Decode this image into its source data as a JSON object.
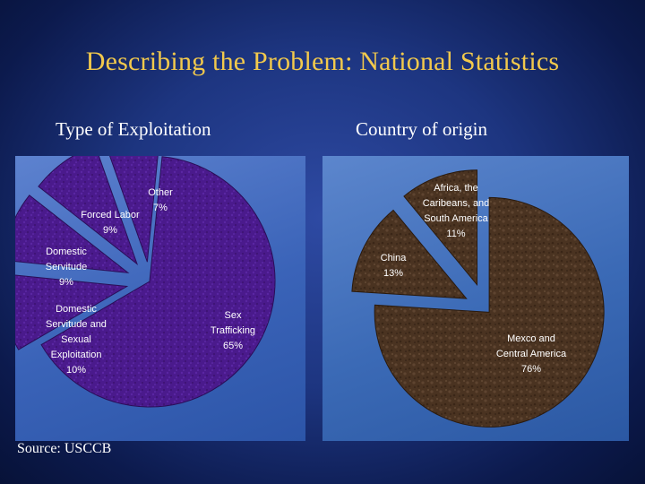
{
  "slide": {
    "title": "Describing the Problem: National Statistics",
    "source": "Source: USCCB"
  },
  "colors": {
    "title": "#f2c94c",
    "left_pie_fill": "#4a1a8c",
    "right_pie_fill": "#4a3321",
    "panel_blue": "#3a63b8"
  },
  "chart_data": [
    {
      "type": "pie",
      "title": "Type of Exploitation",
      "exploded": true,
      "slices": [
        {
          "label_lines": [
            "Sex",
            "Trafficking",
            "65%"
          ],
          "value": 65
        },
        {
          "label_lines": [
            "Domestic",
            "Servitude and",
            "Sexual",
            "Exploitation",
            "10%"
          ],
          "value": 10
        },
        {
          "label_lines": [
            "Domestic",
            "Servitude",
            "9%"
          ],
          "value": 9
        },
        {
          "label_lines": [
            "Forced Labor",
            "9%"
          ],
          "value": 9
        },
        {
          "label_lines": [
            "Other",
            "7%"
          ],
          "value": 7
        }
      ]
    },
    {
      "type": "pie",
      "title": "Country of origin",
      "exploded": true,
      "slices": [
        {
          "label_lines": [
            "Mexco and",
            "Central America",
            "76%"
          ],
          "value": 76
        },
        {
          "label_lines": [
            "China",
            "13%"
          ],
          "value": 13
        },
        {
          "label_lines": [
            "Africa, the",
            "Caribeans, and",
            "South America",
            "11%"
          ],
          "value": 11
        }
      ]
    }
  ]
}
